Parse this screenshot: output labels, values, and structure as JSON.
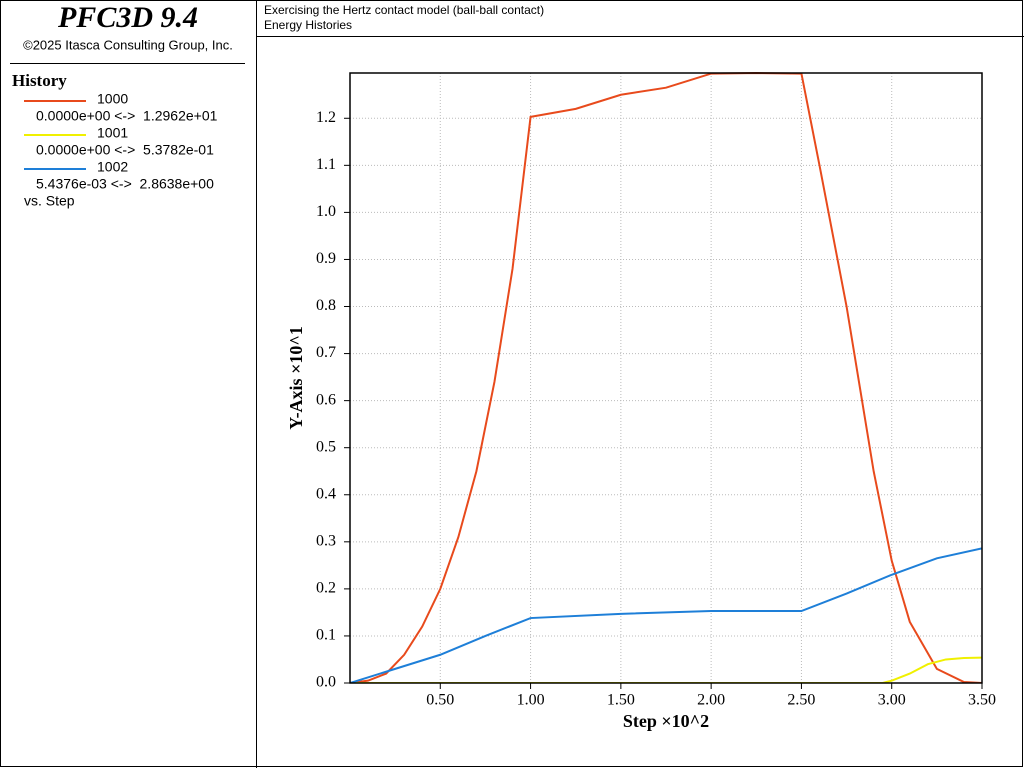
{
  "header": {
    "product": "PFC3D 9.4",
    "copyright": "©2025 Itasca Consulting Group, Inc."
  },
  "history_panel": {
    "title": "History",
    "ranges": [
      "0.0000e+00 <->  1.2962e+01",
      "0.0000e+00 <->  5.3782e-01",
      "5.4376e-03 <->  2.8638e+00"
    ],
    "footer": "vs. Step"
  },
  "chart_data": {
    "type": "line",
    "title": "Exercising the Hertz contact model (ball-ball contact)",
    "subtitle": "Energy Histories",
    "x_label": "Step ×10^2",
    "y_label": "Y-Axis ×10^1",
    "grid": true,
    "xlim": [
      0,
      3.5
    ],
    "ylim": [
      0,
      1.2962
    ],
    "xticks": [
      {
        "value": 0.5,
        "label": "0.50"
      },
      {
        "value": 1,
        "label": "1.00"
      },
      {
        "value": 1.5,
        "label": "1.50"
      },
      {
        "value": 2,
        "label": "2.00"
      },
      {
        "value": 2.5,
        "label": "2.50"
      },
      {
        "value": 3,
        "label": "3.00"
      },
      {
        "value": 3.5,
        "label": "3.50"
      }
    ],
    "yticks": [
      {
        "value": 0,
        "label": "0.0"
      },
      0.1,
      0.2,
      0.3,
      0.4,
      0.5,
      0.6,
      0.7,
      0.8,
      0.9,
      {
        "value": 1,
        "label": "1.0"
      },
      1.1,
      1.2
    ],
    "series": [
      {
        "name": "1000",
        "color": "#e84a1c",
        "x": [
          0,
          0.1,
          0.2,
          0.3,
          0.4,
          0.5,
          0.6,
          0.7,
          0.8,
          0.9,
          1.0,
          1.25,
          1.5,
          1.75,
          2.0,
          2.25,
          2.5,
          2.6,
          2.75,
          2.9,
          3.0,
          3.1,
          3.25,
          3.4,
          3.5
        ],
        "values": [
          0,
          0.005,
          0.02,
          0.06,
          0.12,
          0.2,
          0.31,
          0.45,
          0.64,
          0.88,
          1.203,
          1.22,
          1.25,
          1.265,
          1.295,
          1.2962,
          1.295,
          1.1,
          0.8,
          0.45,
          0.26,
          0.13,
          0.03,
          0.002,
          0
        ]
      },
      {
        "name": "1001",
        "color": "#f0f000",
        "x": [
          0,
          1.0,
          2.0,
          2.95,
          3.0,
          3.1,
          3.2,
          3.3,
          3.4,
          3.5
        ],
        "values": [
          0,
          0,
          0,
          0,
          0.005,
          0.02,
          0.04,
          0.05,
          0.053,
          0.0538
        ]
      },
      {
        "name": "1002",
        "color": "#1e7fd8",
        "x": [
          0,
          0.25,
          0.5,
          0.75,
          1.0,
          1.5,
          2.0,
          2.5,
          2.75,
          3.0,
          3.25,
          3.5
        ],
        "values": [
          0,
          0.03,
          0.06,
          0.1,
          0.138,
          0.147,
          0.153,
          0.153,
          0.19,
          0.23,
          0.265,
          0.286
        ]
      }
    ]
  }
}
